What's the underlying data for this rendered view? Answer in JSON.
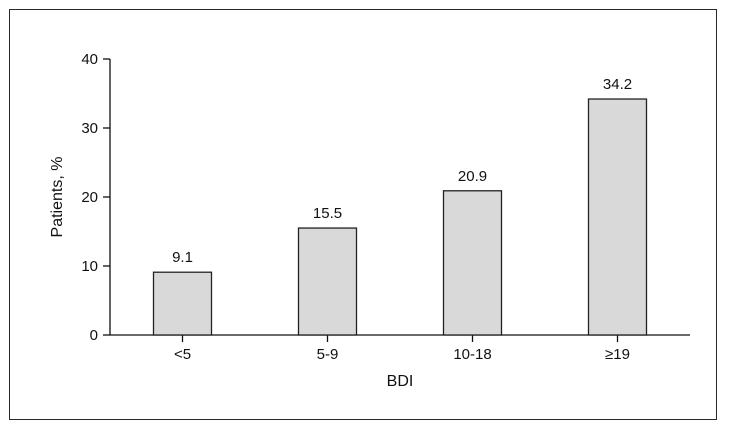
{
  "chart_data": {
    "type": "bar",
    "categories": [
      "<5",
      "5-9",
      "10-18",
      "≥19"
    ],
    "values": [
      9.1,
      15.5,
      20.9,
      34.2
    ],
    "data_labels": [
      "9.1",
      "15.5",
      "20.9",
      "34.2"
    ],
    "xlabel": "BDI",
    "ylabel": "Patients, %",
    "ylim": [
      0,
      40
    ],
    "yticks": [
      0,
      10,
      20,
      30,
      40
    ],
    "grid": false,
    "bar_fill": "#d9d9d9",
    "bar_stroke": "#222222"
  }
}
